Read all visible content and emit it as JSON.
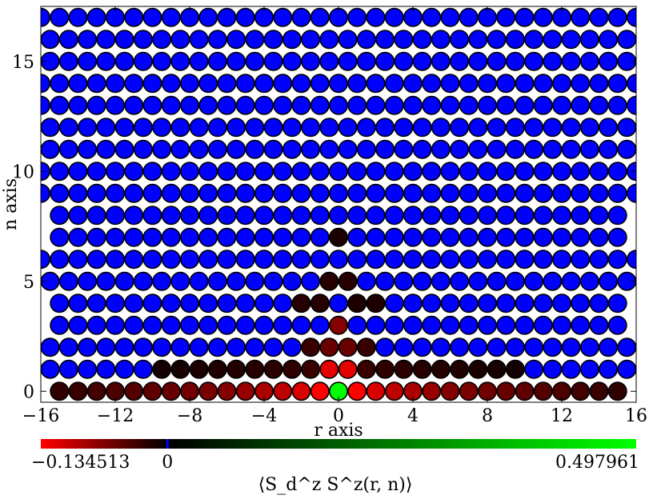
{
  "chart_data": {
    "type": "scatter",
    "title": "",
    "xlabel": "r axis",
    "ylabel": "n axis",
    "xlim": [
      -16,
      16
    ],
    "ylim": [
      -0.5,
      17.5
    ],
    "x_ticks": [
      -16,
      -12,
      -8,
      -4,
      0,
      4,
      8,
      12,
      16
    ],
    "x_tick_labels": [
      "−16",
      "−12",
      "−8",
      "−4",
      "0",
      "4",
      "8",
      "12",
      "16"
    ],
    "y_ticks": [
      0,
      5,
      10,
      15
    ],
    "y_tick_labels": [
      "0",
      "5",
      "10",
      "15"
    ],
    "grid": false,
    "colorbar": {
      "label": "⟨S_d^z S^z(r, n)⟩",
      "min": -0.134513,
      "max": 0.497961,
      "center": 0,
      "min_label": "−0.134513",
      "center_label": "0",
      "max_label": "0.497961",
      "colors": {
        "min": "#ff0000",
        "center": "#000000",
        "max": "#00ff00",
        "center_tick": "#0000ff"
      }
    },
    "background_color": "#0000ff",
    "rows": [
      {
        "n": 0,
        "r_min": -15,
        "r_max": 15,
        "values": {
          "-15": -0.025,
          "-14": -0.03,
          "-13": -0.035,
          "-12": -0.04,
          "-11": -0.045,
          "-10": -0.05,
          "-9": -0.055,
          "-8": -0.06,
          "-7": -0.065,
          "-6": -0.07,
          "-5": -0.08,
          "-4": -0.09,
          "-3": -0.1,
          "-2": -0.115,
          "-1": -0.134513,
          "0": 0.497961,
          "1": -0.134513,
          "2": -0.115,
          "3": -0.1,
          "4": -0.09,
          "5": -0.08,
          "6": -0.07,
          "7": -0.065,
          "8": -0.06,
          "9": -0.055,
          "10": -0.05,
          "11": -0.045,
          "12": -0.04,
          "13": -0.035,
          "14": -0.03,
          "15": -0.025
        }
      },
      {
        "n": 1,
        "r_min": -15.5,
        "r_max": 15.5,
        "values": {
          "-9.5": -0.01,
          "-8.5": -0.012,
          "-7.5": -0.014,
          "-6.5": -0.016,
          "-5.5": -0.018,
          "-4.5": -0.02,
          "-3.5": -0.022,
          "-2.5": -0.025,
          "-1.5": -0.03,
          "-0.5": -0.12,
          "0.5": -0.12,
          "1.5": -0.03,
          "2.5": -0.025,
          "3.5": -0.022,
          "4.5": -0.02,
          "5.5": -0.018,
          "6.5": -0.016,
          "7.5": -0.014,
          "8.5": -0.012,
          "9.5": -0.01
        }
      },
      {
        "n": 2,
        "r_min": -15.5,
        "r_max": 15.5,
        "values": {
          "-1.5": -0.03,
          "-0.5": -0.055,
          "0.5": -0.055,
          "1.5": -0.03
        }
      },
      {
        "n": 3,
        "r_min": -15,
        "r_max": 15,
        "values": {
          "0": -0.07
        }
      },
      {
        "n": 4,
        "r_min": -15,
        "r_max": 15,
        "values": {
          "-2": -0.02,
          "-1": -0.02,
          "1": -0.015,
          "2": -0.015
        }
      },
      {
        "n": 5,
        "r_min": -15.5,
        "r_max": 15.5,
        "values": {
          "-0.5": -0.02,
          "0.5": -0.02
        }
      },
      {
        "n": 6,
        "r_min": -16,
        "r_max": 16,
        "values": {}
      },
      {
        "n": 7,
        "r_min": -15,
        "r_max": 15,
        "values": {
          "0": -0.015
        }
      },
      {
        "n": 8,
        "r_min": -15,
        "r_max": 15,
        "values": {}
      },
      {
        "n": 9,
        "r_min": -16,
        "r_max": 16,
        "values": {}
      },
      {
        "n": 10,
        "r_min": -16,
        "r_max": 16,
        "values": {}
      },
      {
        "n": 11,
        "r_min": -15.5,
        "r_max": 15.5,
        "values": {}
      },
      {
        "n": 12,
        "r_min": -15.5,
        "r_max": 15.5,
        "values": {}
      },
      {
        "n": 13,
        "r_min": -16,
        "r_max": 16,
        "values": {}
      },
      {
        "n": 14,
        "r_min": -16,
        "r_max": 16,
        "values": {}
      },
      {
        "n": 15,
        "r_min": -15.5,
        "r_max": 15.5,
        "values": {}
      },
      {
        "n": 16,
        "r_min": -15.5,
        "r_max": 15.5,
        "values": {}
      },
      {
        "n": 17,
        "r_min": -16,
        "r_max": 16,
        "values": {}
      }
    ]
  }
}
